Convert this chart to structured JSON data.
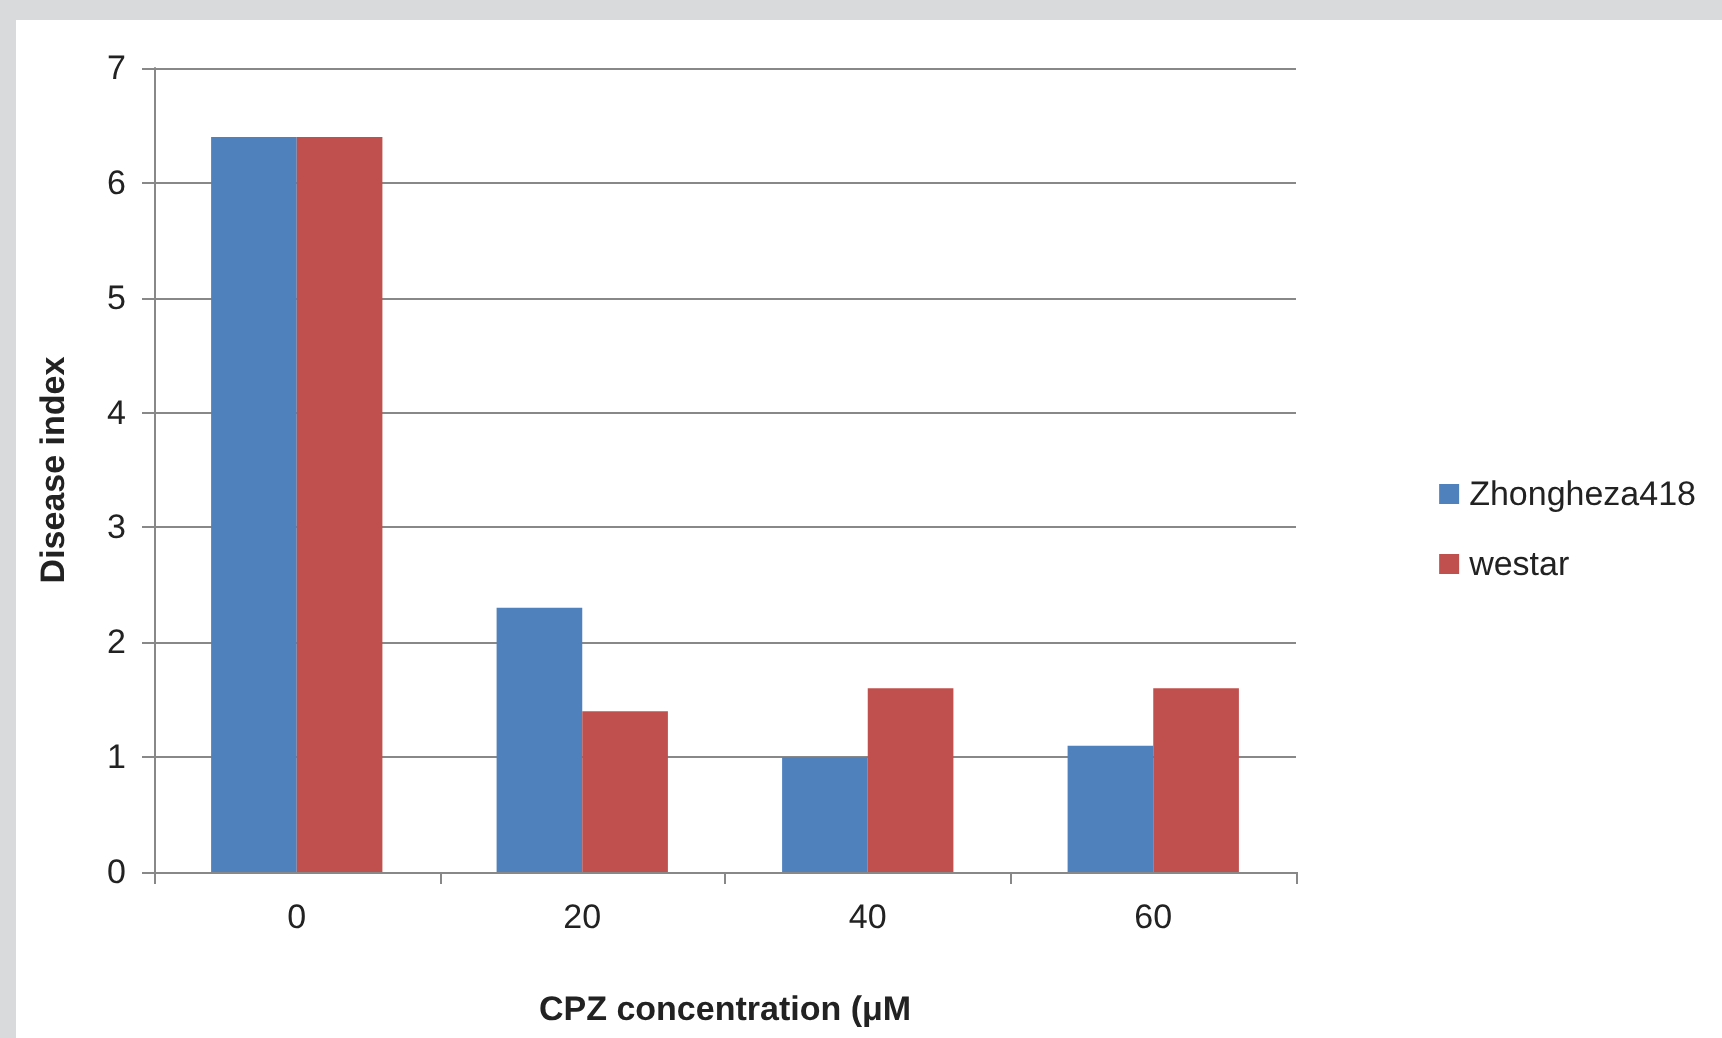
{
  "chart_data": {
    "type": "bar",
    "xlabel": "CPZ concentration (μM",
    "ylabel": "Disease index",
    "categories": [
      "0",
      "20",
      "40",
      "60"
    ],
    "series": [
      {
        "name": "Zhongheza418",
        "color": "#4f81bd",
        "values": [
          6.4,
          2.3,
          1.0,
          1.1
        ]
      },
      {
        "name": "westar",
        "color": "#c0504d",
        "values": [
          6.4,
          1.4,
          1.6,
          1.6
        ]
      }
    ],
    "ylim": [
      0,
      7
    ],
    "yticks": [
      0,
      1,
      2,
      3,
      4,
      5,
      6,
      7
    ],
    "grid": "y",
    "legend": "right"
  }
}
